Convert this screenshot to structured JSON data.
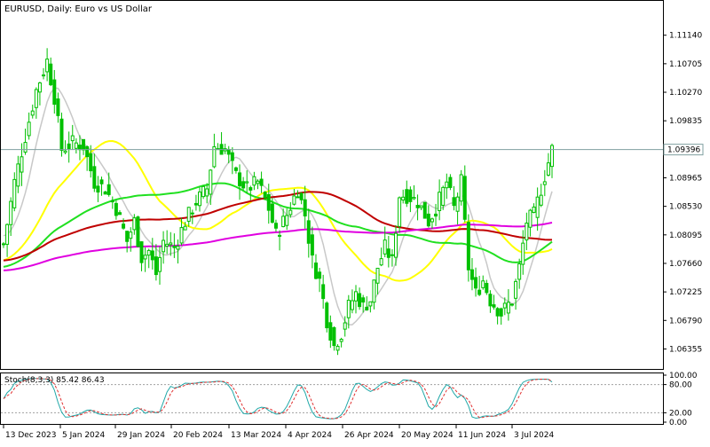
{
  "header": {
    "title": "EURUSD, Daily:  Euro vs US Dollar"
  },
  "price_axis": {
    "ticks": [
      "1.11140",
      "1.10705",
      "1.10270",
      "1.09835",
      "1.09396",
      "1.08965",
      "1.08530",
      "1.08095",
      "1.07660",
      "1.07225",
      "1.06790",
      "1.06355"
    ],
    "current_price_label": "1.09396"
  },
  "time_axis": {
    "labels": [
      "13 Dec 2023",
      "5 Jan 2024",
      "29 Jan 2024",
      "20 Feb 2024",
      "13 Mar 2024",
      "4 Apr 2024",
      "26 Apr 2024",
      "20 May 2024",
      "11 Jun 2024",
      "3 Jul 2024"
    ]
  },
  "stochastic": {
    "label": "Stoch(8,3,3) 85.42 86.43",
    "ticks": [
      "100.00",
      "80.00",
      "20.00",
      "0.00"
    ]
  },
  "colors": {
    "bull": "#00c000",
    "bear": "#00c000",
    "ma_fast": "#c8c8c8",
    "ma_yellow": "#ffff00",
    "ma_green": "#20e020",
    "ma_red": "#c00000",
    "ma_magenta": "#e000e0",
    "stoch_main": "#20a8a8",
    "stoch_signal": "#e03030",
    "price_line": "#7f9fa0"
  },
  "chart_data": [
    {
      "type": "candlestick",
      "title": "EURUSD, Daily:  Euro vs US Dollar",
      "ylim": [
        1.0605,
        1.1165
      ],
      "current_price": 1.09396,
      "x_labels": [
        "13 Dec 2023",
        "5 Jan 2024",
        "29 Jan 2024",
        "20 Feb 2024",
        "13 Mar 2024",
        "4 Apr 2024",
        "26 Apr 2024",
        "20 May 2024",
        "11 Jun 2024",
        "3 Jul 2024"
      ],
      "close_keypoints": [
        [
          0,
          1.0795
        ],
        [
          3,
          1.089
        ],
        [
          6,
          1.096
        ],
        [
          9,
          1.103
        ],
        [
          12,
          1.1075
        ],
        [
          14,
          1.102
        ],
        [
          16,
          1.094
        ],
        [
          19,
          1.095
        ],
        [
          22,
          1.0945
        ],
        [
          25,
          1.089
        ],
        [
          28,
          1.088
        ],
        [
          31,
          1.085
        ],
        [
          34,
          1.08
        ],
        [
          36,
          1.083
        ],
        [
          38,
          1.0775
        ],
        [
          40,
          1.0785
        ],
        [
          42,
          1.075
        ],
        [
          44,
          1.08
        ],
        [
          47,
          1.079
        ],
        [
          50,
          1.083
        ],
        [
          53,
          1.086
        ],
        [
          56,
          1.088
        ],
        [
          58,
          1.0945
        ],
        [
          61,
          1.094
        ],
        [
          64,
          1.09
        ],
        [
          67,
          1.088
        ],
        [
          70,
          1.089
        ],
        [
          73,
          1.085
        ],
        [
          75,
          1.081
        ],
        [
          78,
          1.084
        ],
        [
          81,
          1.088
        ],
        [
          83,
          1.084
        ],
        [
          85,
          1.077
        ],
        [
          87,
          1.074
        ],
        [
          89,
          1.068
        ],
        [
          91,
          1.064
        ],
        [
          93,
          1.066
        ],
        [
          95,
          1.07
        ],
        [
          97,
          1.072
        ],
        [
          99,
          1.07
        ],
        [
          101,
          1.071
        ],
        [
          103,
          1.076
        ],
        [
          105,
          1.079
        ],
        [
          107,
          1.077
        ],
        [
          109,
          1.087
        ],
        [
          111,
          1.087
        ],
        [
          114,
          1.086
        ],
        [
          117,
          1.083
        ],
        [
          119,
          1.085
        ],
        [
          122,
          1.089
        ],
        [
          124,
          1.085
        ],
        [
          126,
          1.089
        ],
        [
          128,
          1.076
        ],
        [
          130,
          1.072
        ],
        [
          132,
          1.074
        ],
        [
          134,
          1.071
        ],
        [
          137,
          1.069
        ],
        [
          140,
          1.071
        ],
        [
          142,
          1.076
        ],
        [
          144,
          1.083
        ],
        [
          146,
          1.084
        ],
        [
          148,
          1.088
        ],
        [
          150,
          1.092
        ],
        [
          151,
          1.094
        ]
      ],
      "moving_averages": [
        {
          "name": "MA fast",
          "color": "#c8c8c8"
        },
        {
          "name": "MA 50",
          "color": "#ffff00"
        },
        {
          "name": "MA 100",
          "color": "#20e020"
        },
        {
          "name": "MA 200",
          "color": "#c00000"
        },
        {
          "name": "MA 400",
          "color": "#e000e0"
        }
      ]
    },
    {
      "type": "line",
      "title": "Stoch(8,3,3) 85.42 86.43",
      "ylim": [
        0,
        100
      ],
      "levels": [
        80,
        20
      ],
      "series": [
        {
          "name": "Main",
          "value": 85.42
        },
        {
          "name": "Signal",
          "value": 86.43
        }
      ]
    }
  ]
}
